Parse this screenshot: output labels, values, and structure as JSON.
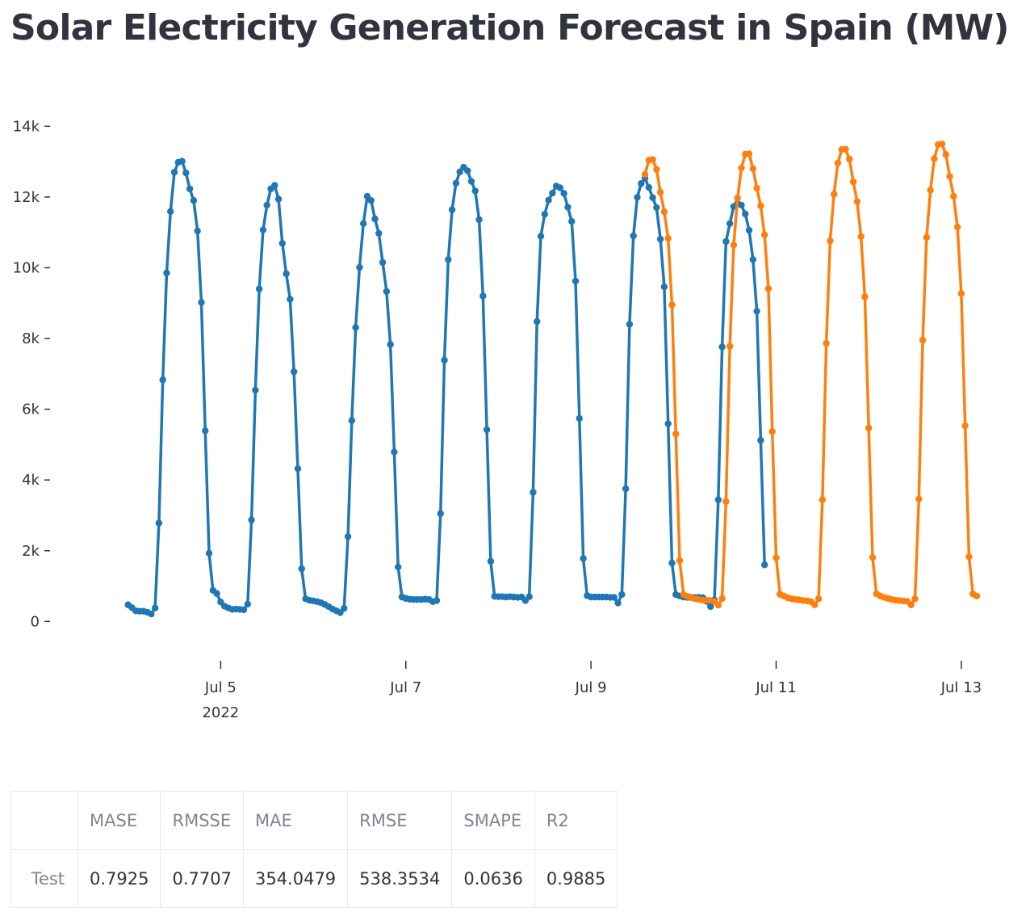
{
  "page": {
    "title": "Solar Electricity Generation Forecast in Spain (MW)"
  },
  "chart_data": {
    "type": "line",
    "markers": true,
    "title": "",
    "xlabel": "",
    "ylabel": "",
    "x_axis": {
      "type": "date",
      "range": [
        "2022-07-03T18:00",
        "2022-07-13T04:00"
      ],
      "ticks": [
        {
          "value": "2022-07-05T00:00",
          "label": "Jul 5",
          "sublabel": "2022"
        },
        {
          "value": "2022-07-07T00:00",
          "label": "Jul 7"
        },
        {
          "value": "2022-07-09T00:00",
          "label": "Jul 9"
        },
        {
          "value": "2022-07-11T00:00",
          "label": "Jul 11"
        },
        {
          "value": "2022-07-13T00:00",
          "label": "Jul 13"
        }
      ]
    },
    "y_axis": {
      "range": [
        -700,
        14600
      ],
      "ticks": [
        {
          "value": 0,
          "label": "0"
        },
        {
          "value": 2000,
          "label": "2k"
        },
        {
          "value": 4000,
          "label": "4k"
        },
        {
          "value": 6000,
          "label": "6k"
        },
        {
          "value": 8000,
          "label": "8k"
        },
        {
          "value": 10000,
          "label": "10k"
        },
        {
          "value": 12000,
          "label": "12k"
        },
        {
          "value": 14000,
          "label": "14k"
        }
      ]
    },
    "grid": false,
    "legend": "none",
    "series": [
      {
        "color": "#1f77b4",
        "start": "2022-07-04T00:00",
        "step_hours": 1,
        "values": [
          470,
          390,
          300,
          290,
          290,
          260,
          210,
          380,
          2780,
          6830,
          9850,
          11590,
          12700,
          12980,
          13010,
          12680,
          12230,
          11900,
          11040,
          9020,
          5390,
          1930,
          880,
          790,
          550,
          430,
          380,
          340,
          350,
          340,
          330,
          490,
          2870,
          6540,
          9400,
          11070,
          11770,
          12230,
          12330,
          11940,
          10690,
          9830,
          9110,
          7060,
          4320,
          1490,
          640,
          600,
          580,
          560,
          530,
          480,
          420,
          350,
          300,
          250,
          370,
          2400,
          5680,
          8310,
          10010,
          11250,
          12020,
          11900,
          11380,
          10970,
          10150,
          9330,
          7830,
          4790,
          1540,
          690,
          650,
          630,
          620,
          620,
          620,
          630,
          620,
          560,
          590,
          3050,
          7390,
          10230,
          11640,
          12390,
          12710,
          12840,
          12740,
          12440,
          12170,
          11360,
          9200,
          5420,
          1700,
          710,
          700,
          700,
          690,
          700,
          690,
          680,
          690,
          590,
          700,
          3650,
          8480,
          10890,
          11510,
          11910,
          12110,
          12310,
          12260,
          12100,
          11710,
          11310,
          9620,
          5740,
          1780,
          730,
          690,
          690,
          690,
          690,
          690,
          680,
          680,
          520,
          760,
          3750,
          8400,
          10900,
          11990,
          12380,
          12530,
          12270,
          11980,
          11700,
          10810,
          9460,
          5590,
          1650,
          760,
          720,
          690,
          680,
          680,
          680,
          680,
          670,
          570,
          420,
          610,
          3440,
          7760,
          10740,
          11250,
          11730,
          11820,
          11770,
          11520,
          11060,
          10230,
          8770,
          5120,
          1600
        ]
      },
      {
        "color": "#ff7f0e",
        "start": "2022-07-09T14:00",
        "step_hours": 1,
        "values": [
          12640,
          13040,
          13060,
          12780,
          12130,
          11580,
          10830,
          8950,
          5300,
          1720,
          760,
          710,
          670,
          640,
          620,
          600,
          600,
          590,
          560,
          460,
          650,
          3390,
          7780,
          10640,
          11970,
          12820,
          13210,
          13220,
          12800,
          12250,
          11750,
          10930,
          9410,
          5370,
          1800,
          770,
          720,
          670,
          640,
          620,
          610,
          590,
          580,
          560,
          470,
          640,
          3440,
          7860,
          10760,
          12080,
          12960,
          13340,
          13350,
          13070,
          12430,
          11870,
          10880,
          9180,
          5470,
          1810,
          780,
          720,
          680,
          650,
          620,
          600,
          590,
          580,
          570,
          470,
          640,
          3460,
          7950,
          10860,
          12190,
          13080,
          13480,
          13500,
          13200,
          12580,
          12020,
          11150,
          9270,
          5530,
          1830,
          780,
          720
        ]
      }
    ]
  },
  "table": {
    "columns": [
      "",
      "MASE",
      "RMSSE",
      "MAE",
      "RMSE",
      "SMAPE",
      "R2"
    ],
    "rows": [
      {
        "label": "Test",
        "values": [
          "0.7925",
          "0.7707",
          "354.0479",
          "538.3534",
          "0.0636",
          "0.9885"
        ]
      }
    ]
  }
}
